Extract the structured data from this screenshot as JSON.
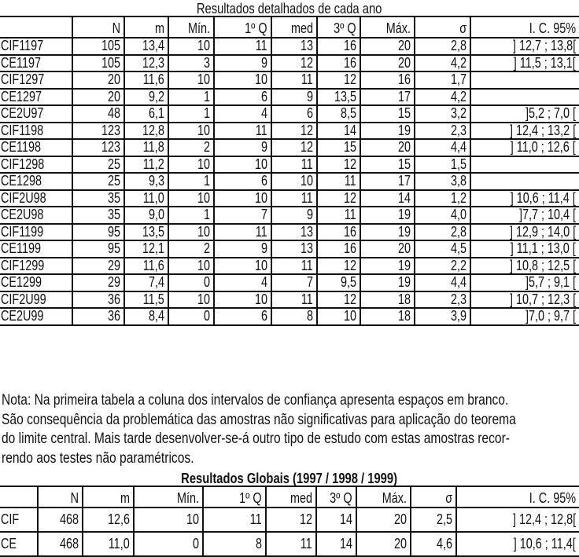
{
  "table1": {
    "title": "Resultados detalhados de cada ano",
    "headers": [
      "",
      "N",
      "m",
      "Mín.",
      "1º Q",
      "med",
      "3º Q",
      "Máx.",
      "σ",
      "I. C. 95%"
    ],
    "rows": [
      [
        "CIF1197",
        "105",
        "13,4",
        "10",
        "11",
        "13",
        "16",
        "20",
        "2,8",
        "] 12,7 ; 13,8["
      ],
      [
        "CE1197",
        "105",
        "12,3",
        "3",
        "9",
        "12",
        "16",
        "20",
        "4,2",
        "] 11,5 ; 13,1["
      ],
      [
        "CIF1297",
        "20",
        "11,6",
        "10",
        "10",
        "11",
        "12",
        "16",
        "1,7",
        ""
      ],
      [
        "CE1297",
        "20",
        "9,2",
        "1",
        "6",
        "9",
        "13,5",
        "17",
        "4,2",
        ""
      ],
      [
        "CE2U97",
        "48",
        "6,1",
        "1",
        "4",
        "6",
        "8,5",
        "15",
        "3,2",
        "]5,2 ; 7,0 ["
      ],
      [
        "CIF1198",
        "123",
        "12,8",
        "10",
        "11",
        "12",
        "14",
        "19",
        "2,3",
        "] 12,4 ; 13,2 ["
      ],
      [
        "CE1198",
        "123",
        "11,8",
        "2",
        "9",
        "12",
        "15",
        "20",
        "4,4",
        "] 11,0 ; 12,6 ["
      ],
      [
        "CIF1298",
        "25",
        "11,2",
        "10",
        "10",
        "11",
        "12",
        "15",
        "1,5",
        ""
      ],
      [
        "CE1298",
        "25",
        "9,3",
        "1",
        "6",
        "10",
        "11",
        "17",
        "3,8",
        ""
      ],
      [
        "CIF2U98",
        "35",
        "11,0",
        "10",
        "10",
        "11",
        "12",
        "14",
        "1,2",
        "] 10,6 ; 11,4 ["
      ],
      [
        "CE2U98",
        "35",
        "9,0",
        "1",
        "7",
        "9",
        "11",
        "19",
        "4,0",
        "]7,7 ; 10,4 ["
      ],
      [
        "CIF1199",
        "95",
        "13,5",
        "10",
        "11",
        "13",
        "16",
        "19",
        "2,8",
        "] 12,9 ; 14,0 ["
      ],
      [
        "CE1199",
        "95",
        "12,1",
        "2",
        "9",
        "13",
        "16",
        "20",
        "4,5",
        "] 11,1 ; 13,0 ["
      ],
      [
        "CIF1299",
        "29",
        "11,6",
        "10",
        "10",
        "11",
        "12",
        "19",
        "2,2",
        "] 10,8 ; 12,5 ["
      ],
      [
        "CE1299",
        "29",
        "7,4",
        "0",
        "4",
        "7",
        "9,5",
        "19",
        "4,4",
        "]5,7 ; 9,1 ["
      ],
      [
        "CIF2U99",
        "36",
        "11,5",
        "10",
        "10",
        "11",
        "12",
        "18",
        "2,3",
        "] 10,7 ; 12,3 ["
      ],
      [
        "CE2U99",
        "36",
        "8,4",
        "0",
        "6",
        "8",
        "10",
        "18",
        "3,9",
        "]7,0 ; 9,7 ["
      ]
    ]
  },
  "note": {
    "lines": [
      "Nota: Na primeira tabela a coluna dos intervalos de confiança apresenta espaços em branco.",
      "São consequência da problemática das amostras não significativas para aplicação do teorema",
      "do limite central. Mais tarde desenvolver-se-á outro tipo de estudo com estas amostras recor-",
      "rendo aos testes não paramétricos."
    ]
  },
  "table2": {
    "title": "Resultados Globais (1997 / 1998 / 1999)",
    "headers": [
      "",
      "N",
      "m",
      "Mín.",
      "1º Q",
      "med",
      "3º Q",
      "Máx.",
      "σ",
      "I. C. 95%"
    ],
    "rows": [
      [
        "CIF",
        "468",
        "12,6",
        "10",
        "11",
        "12",
        "14",
        "20",
        "2,5",
        "] 12,4 ; 12,8["
      ],
      [
        "CE",
        "468",
        "11,0",
        "0",
        "8",
        "11",
        "14",
        "20",
        "4,6",
        "] 10,6 ; 11,4["
      ]
    ]
  }
}
